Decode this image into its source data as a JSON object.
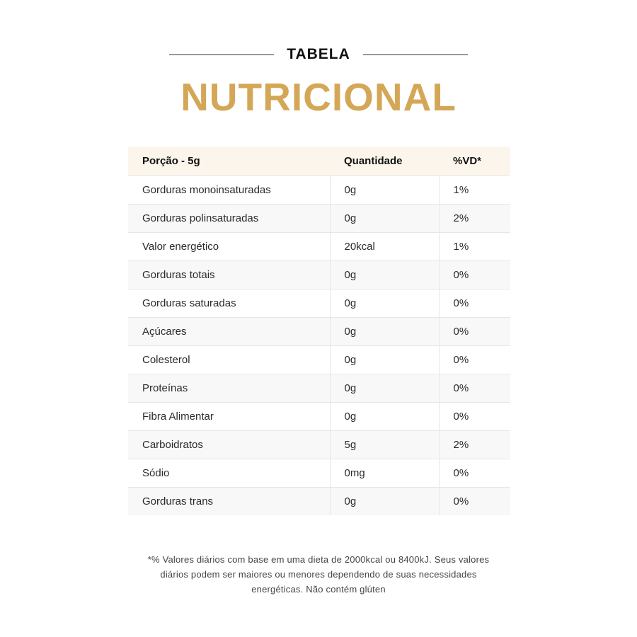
{
  "colors": {
    "accent": "#d4a757",
    "header_bg": "#fcf5ec",
    "row_alt_bg": "#f8f8f8"
  },
  "heading": {
    "small": "TABELA",
    "big": "NUTRICIONAL"
  },
  "table": {
    "headers": [
      "Porção - 5g",
      "Quantidade",
      "%VD*"
    ],
    "rows": [
      [
        "Gorduras monoinsaturadas",
        "0g",
        "1%"
      ],
      [
        "Gorduras polinsaturadas",
        "0g",
        "2%"
      ],
      [
        "Valor energético",
        "20kcal",
        "1%"
      ],
      [
        "Gorduras totais",
        "0g",
        "0%"
      ],
      [
        "Gorduras saturadas",
        "0g",
        "0%"
      ],
      [
        "Açúcares",
        "0g",
        "0%"
      ],
      [
        "Colesterol",
        "0g",
        "0%"
      ],
      [
        "Proteínas",
        "0g",
        "0%"
      ],
      [
        "Fibra Alimentar",
        "0g",
        "0%"
      ],
      [
        "Carboidratos",
        "5g",
        "2%"
      ],
      [
        "Sódio",
        "0mg",
        "0%"
      ],
      [
        "Gorduras trans",
        "0g",
        "0%"
      ]
    ]
  },
  "footnote": {
    "lines": [
      "*% Valores diários com base em uma dieta de 2000kcal ou 8400kJ. Seus valores",
      "diários podem ser maiores ou menores dependendo de suas necessidades",
      "energéticas. Não contém glúten"
    ]
  }
}
